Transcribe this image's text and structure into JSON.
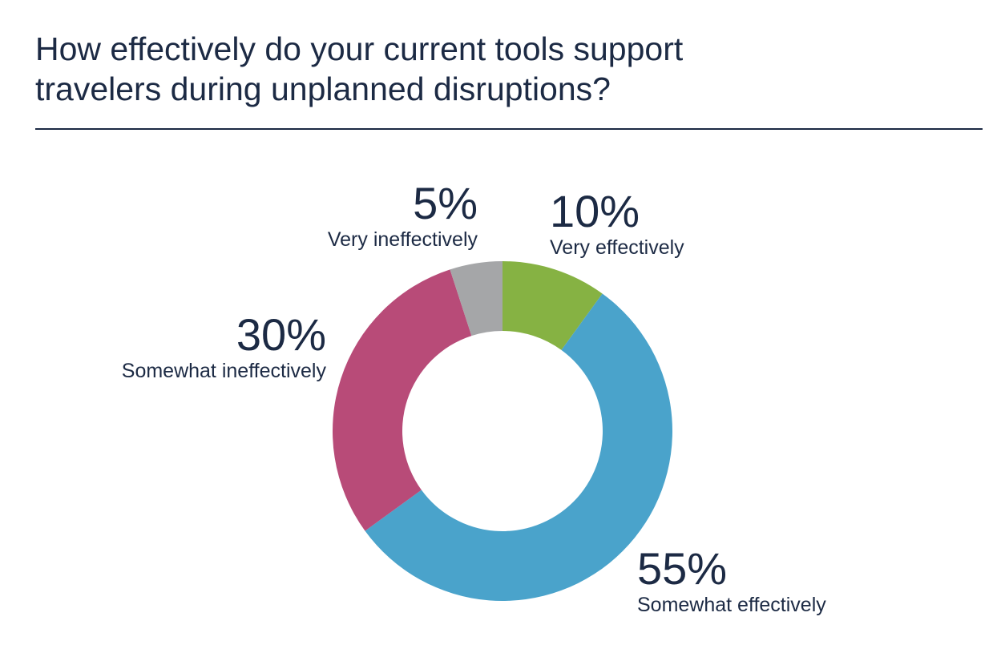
{
  "title": {
    "line1": "How effectively do your current tools support",
    "line2": "travelers during unplanned disruptions?"
  },
  "chart_data": {
    "type": "pie",
    "variant": "donut",
    "title": "How effectively do your current tools support travelers during unplanned disruptions?",
    "categories": [
      "Very effectively",
      "Somewhat effectively",
      "Somewhat ineffectively",
      "Very ineffectively"
    ],
    "values": [
      10,
      55,
      30,
      5
    ],
    "value_labels": [
      "10%",
      "55%",
      "30%",
      "5%"
    ],
    "colors": [
      "#86b243",
      "#4aa3cb",
      "#b84b78",
      "#a5a6a8"
    ],
    "start": "12 o'clock, clockwise",
    "legend": "none (direct labels)"
  }
}
